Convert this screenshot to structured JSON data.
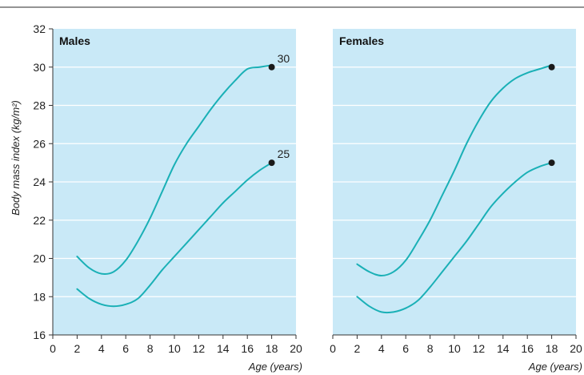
{
  "chart_data": [
    {
      "type": "line",
      "title": "Males",
      "xlabel": "Age (years)",
      "ylabel": "Body mass index (kg/m²)",
      "xlim": [
        0,
        20
      ],
      "ylim": [
        16,
        32
      ],
      "x_ticks": [
        "0",
        "2",
        "4",
        "6",
        "8",
        "10",
        "12",
        "14",
        "16",
        "18",
        "20"
      ],
      "y_ticks": [
        "16",
        "18",
        "20",
        "22",
        "24",
        "26",
        "28",
        "30",
        "32"
      ],
      "grid": true,
      "series": [
        {
          "x": [
            2,
            3,
            4,
            5,
            6,
            7,
            8,
            9,
            10,
            11,
            12,
            13,
            14,
            15,
            16,
            17,
            18
          ],
          "y": [
            20.1,
            19.5,
            19.2,
            19.3,
            19.9,
            20.9,
            22.1,
            23.5,
            24.9,
            26.0,
            26.9,
            27.8,
            28.6,
            29.3,
            29.9,
            30.0,
            30.1
          ],
          "end_value": 30,
          "end_label": "30"
        },
        {
          "x": [
            2,
            3,
            4,
            5,
            6,
            7,
            8,
            9,
            10,
            11,
            12,
            13,
            14,
            15,
            16,
            17,
            18
          ],
          "y": [
            18.4,
            17.9,
            17.6,
            17.5,
            17.6,
            17.9,
            18.6,
            19.4,
            20.1,
            20.8,
            21.5,
            22.2,
            22.9,
            23.5,
            24.1,
            24.6,
            25.0
          ],
          "end_value": 25,
          "end_label": "25"
        }
      ]
    },
    {
      "type": "line",
      "title": "Females",
      "xlabel": "Age (years)",
      "xlim": [
        0,
        20
      ],
      "ylim": [
        16,
        32
      ],
      "x_ticks": [
        "0",
        "2",
        "4",
        "6",
        "8",
        "10",
        "12",
        "14",
        "16",
        "18",
        "20"
      ],
      "grid": true,
      "series": [
        {
          "x": [
            2,
            3,
            4,
            5,
            6,
            7,
            8,
            9,
            10,
            11,
            12,
            13,
            14,
            15,
            16,
            17,
            18
          ],
          "y": [
            19.7,
            19.3,
            19.1,
            19.3,
            19.9,
            20.9,
            22.0,
            23.3,
            24.6,
            26.0,
            27.2,
            28.2,
            28.9,
            29.4,
            29.7,
            29.9,
            30.1
          ],
          "end_value": 30
        },
        {
          "x": [
            2,
            3,
            4,
            5,
            6,
            7,
            8,
            9,
            10,
            11,
            12,
            13,
            14,
            15,
            16,
            17,
            18
          ],
          "y": [
            18.0,
            17.5,
            17.2,
            17.2,
            17.4,
            17.8,
            18.5,
            19.3,
            20.1,
            20.9,
            21.8,
            22.7,
            23.4,
            24.0,
            24.5,
            24.8,
            25.0
          ],
          "end_value": 25
        }
      ]
    }
  ],
  "colors": {
    "panel_bg": "#c9e9f7",
    "grid": "#ffffff",
    "line": "#1ab0b6",
    "point": "#1a1a1a",
    "rule": "#555555",
    "axis": "#333333"
  }
}
